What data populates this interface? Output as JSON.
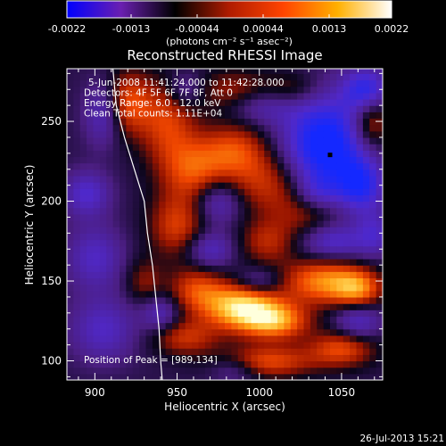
{
  "chart_data": {
    "type": "heatmap",
    "title": "Reconstructed RHESSI Image",
    "xlabel": "Heliocentric X (arcsec)",
    "ylabel": "Heliocentric Y (arcsec)",
    "xlim": [
      883,
      1075
    ],
    "ylim": [
      88,
      283
    ],
    "xticks": [
      900,
      950,
      1000,
      1050
    ],
    "yticks": [
      100,
      150,
      200,
      250
    ],
    "colorbar": {
      "ticks": [
        "-0.0022",
        "-0.0013",
        "-0.00044",
        "0.00044",
        "0.0013",
        "0.0022"
      ],
      "units": "(photons cm⁻² s⁻¹ asec⁻²)",
      "range": [
        -0.0022,
        0.0022
      ],
      "colors": [
        "#0000ff",
        "#6a1fb0",
        "#000000",
        "#b01c00",
        "#ff4400",
        "#ffb000",
        "#ffffff"
      ]
    },
    "annotations": [
      "5-Jun-2008 11:41:24.000 to 11:42:28.000",
      "Detectors: 4F 5F 6F 7F 8F, Att 0",
      "Energy Range: 6.0 - 12.0 keV",
      "Clean    Total counts: 1.11E+04"
    ],
    "peak_label": "Position of Peak = [989,134]",
    "peak": [
      989,
      134
    ],
    "marker": [
      1043,
      229
    ],
    "limb_curve": [
      [
        911,
        283
      ],
      [
        913,
        260
      ],
      [
        918,
        240
      ],
      [
        924,
        220
      ],
      [
        930,
        200
      ],
      [
        932,
        180
      ],
      [
        935,
        160
      ],
      [
        937,
        140
      ],
      [
        939,
        120
      ],
      [
        940,
        100
      ],
      [
        941,
        88
      ]
    ],
    "blobs": [
      {
        "x": 920,
        "y": 262,
        "sx": 10,
        "sy": 14,
        "v": 0.55
      },
      {
        "x": 944,
        "y": 250,
        "sx": 12,
        "sy": 18,
        "v": 0.5
      },
      {
        "x": 960,
        "y": 220,
        "sx": 14,
        "sy": 14,
        "v": 0.55
      },
      {
        "x": 985,
        "y": 232,
        "sx": 14,
        "sy": 12,
        "v": 0.5
      },
      {
        "x": 1005,
        "y": 212,
        "sx": 16,
        "sy": 14,
        "v": 0.45
      },
      {
        "x": 1030,
        "y": 195,
        "sx": 14,
        "sy": 12,
        "v": 0.4
      },
      {
        "x": 985,
        "y": 268,
        "sx": 16,
        "sy": 10,
        "v": 0.4
      },
      {
        "x": 1020,
        "y": 270,
        "sx": 12,
        "sy": 8,
        "v": 0.3
      },
      {
        "x": 1068,
        "y": 250,
        "sx": 8,
        "sy": 12,
        "v": 0.55
      },
      {
        "x": 950,
        "y": 185,
        "sx": 12,
        "sy": 14,
        "v": 0.5
      },
      {
        "x": 1005,
        "y": 175,
        "sx": 12,
        "sy": 10,
        "v": 0.4
      },
      {
        "x": 1040,
        "y": 150,
        "sx": 18,
        "sy": 10,
        "v": 0.75
      },
      {
        "x": 1060,
        "y": 145,
        "sx": 10,
        "sy": 8,
        "v": 0.55
      },
      {
        "x": 989,
        "y": 134,
        "sx": 16,
        "sy": 10,
        "v": 1.0
      },
      {
        "x": 1010,
        "y": 125,
        "sx": 14,
        "sy": 8,
        "v": 0.75
      },
      {
        "x": 962,
        "y": 145,
        "sx": 12,
        "sy": 10,
        "v": 0.5
      },
      {
        "x": 955,
        "y": 115,
        "sx": 14,
        "sy": 8,
        "v": 0.45
      },
      {
        "x": 1005,
        "y": 100,
        "sx": 20,
        "sy": 7,
        "v": 0.55
      },
      {
        "x": 1050,
        "y": 108,
        "sx": 14,
        "sy": 8,
        "v": 0.55
      },
      {
        "x": 930,
        "y": 150,
        "sx": 8,
        "sy": 10,
        "v": 0.3
      },
      {
        "x": 1040,
        "y": 235,
        "sx": 18,
        "sy": 22,
        "v": -1.0
      },
      {
        "x": 1065,
        "y": 270,
        "sx": 10,
        "sy": 10,
        "v": -0.7
      },
      {
        "x": 1062,
        "y": 210,
        "sx": 10,
        "sy": 12,
        "v": -0.65
      },
      {
        "x": 895,
        "y": 205,
        "sx": 10,
        "sy": 10,
        "v": -0.5
      },
      {
        "x": 1000,
        "y": 260,
        "sx": 16,
        "sy": 8,
        "v": -0.4
      },
      {
        "x": 975,
        "y": 200,
        "sx": 10,
        "sy": 10,
        "v": -0.45
      },
      {
        "x": 1035,
        "y": 205,
        "sx": 10,
        "sy": 8,
        "v": -0.4
      },
      {
        "x": 900,
        "y": 165,
        "sx": 12,
        "sy": 14,
        "v": -0.45
      },
      {
        "x": 970,
        "y": 170,
        "sx": 10,
        "sy": 8,
        "v": -0.45
      },
      {
        "x": 1045,
        "y": 175,
        "sx": 14,
        "sy": 8,
        "v": -0.5
      },
      {
        "x": 940,
        "y": 130,
        "sx": 8,
        "sy": 8,
        "v": -0.4
      },
      {
        "x": 1060,
        "y": 125,
        "sx": 10,
        "sy": 8,
        "v": -0.45
      },
      {
        "x": 905,
        "y": 120,
        "sx": 14,
        "sy": 14,
        "v": -0.45
      },
      {
        "x": 985,
        "y": 95,
        "sx": 10,
        "sy": 6,
        "v": -0.3
      },
      {
        "x": 905,
        "y": 255,
        "sx": 8,
        "sy": 14,
        "v": -0.45
      },
      {
        "x": 1000,
        "y": 150,
        "sx": 10,
        "sy": 6,
        "v": -0.35
      },
      {
        "x": 955,
        "y": 270,
        "sx": 8,
        "sy": 8,
        "v": -0.35
      },
      {
        "x": 1070,
        "y": 180,
        "sx": 8,
        "sy": 10,
        "v": -0.4
      }
    ]
  },
  "footer": {
    "timestamp": "26-Jul-2013 15:21"
  }
}
